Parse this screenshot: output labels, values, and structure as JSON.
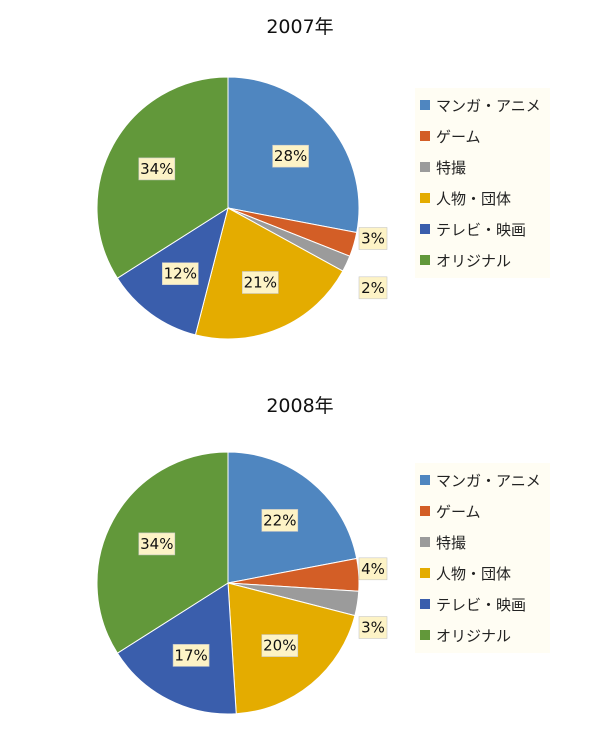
{
  "chart_data": [
    {
      "type": "pie",
      "title": "2007年",
      "start_angle_deg": 0,
      "direction": "clockwise",
      "legend_position": "right",
      "categories": [
        "マンガ・アニメ",
        "ゲーム",
        "特撮",
        "人物・団体",
        "テレビ・映画",
        "オリジナル"
      ],
      "values": [
        28,
        3,
        2,
        21,
        12,
        34
      ],
      "labels": [
        "28%",
        "3%",
        "2%",
        "21%",
        "12%",
        "34%"
      ],
      "colors": [
        "#4f86c0",
        "#d35e26",
        "#9b9b9b",
        "#e4ac00",
        "#3a5eac",
        "#62983a"
      ]
    },
    {
      "type": "pie",
      "title": "2008年",
      "start_angle_deg": 0,
      "direction": "clockwise",
      "legend_position": "right",
      "categories": [
        "マンガ・アニメ",
        "ゲーム",
        "特撮",
        "人物・団体",
        "テレビ・映画",
        "オリジナル"
      ],
      "values": [
        22,
        4,
        3,
        20,
        17,
        34
      ],
      "labels": [
        "22%",
        "4%",
        "3%",
        "20%",
        "17%",
        "34%"
      ],
      "colors": [
        "#4f86c0",
        "#d35e26",
        "#9b9b9b",
        "#e4ac00",
        "#3a5eac",
        "#62983a"
      ]
    }
  ]
}
